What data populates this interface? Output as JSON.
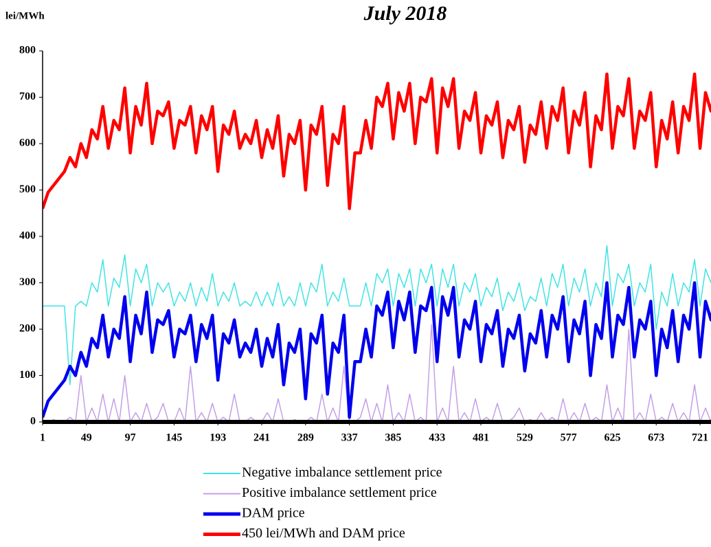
{
  "chart_data": {
    "type": "line",
    "title": "July 2018",
    "y_label": "lei/MWh",
    "x": [
      1,
      7,
      13,
      19,
      25,
      31,
      37,
      43,
      49,
      55,
      61,
      67,
      73,
      79,
      85,
      91,
      97,
      103,
      109,
      115,
      121,
      127,
      133,
      139,
      145,
      151,
      157,
      163,
      169,
      175,
      181,
      187,
      193,
      199,
      205,
      211,
      217,
      223,
      229,
      235,
      241,
      247,
      253,
      259,
      265,
      271,
      277,
      283,
      289,
      295,
      301,
      307,
      313,
      319,
      325,
      331,
      337,
      343,
      349,
      355,
      361,
      367,
      373,
      379,
      385,
      391,
      397,
      403,
      409,
      415,
      421,
      427,
      433,
      439,
      445,
      451,
      457,
      463,
      469,
      475,
      481,
      487,
      493,
      499,
      505,
      511,
      517,
      523,
      529,
      535,
      541,
      547,
      553,
      559,
      565,
      571,
      577,
      583,
      589,
      595,
      601,
      607,
      613,
      619,
      625,
      631,
      637,
      643,
      649,
      655,
      661,
      667,
      673,
      679,
      685,
      691,
      697,
      703,
      709,
      715,
      721,
      727,
      733,
      739
    ],
    "series": [
      {
        "name": "Negative imbalance settlement price",
        "color": "#3fe3e3",
        "values": [
          250,
          250,
          250,
          250,
          250,
          80,
          250,
          260,
          250,
          300,
          280,
          350,
          250,
          310,
          290,
          360,
          250,
          330,
          300,
          340,
          250,
          300,
          280,
          300,
          250,
          280,
          260,
          300,
          250,
          290,
          260,
          320,
          250,
          280,
          260,
          300,
          250,
          260,
          250,
          280,
          250,
          280,
          250,
          300,
          250,
          270,
          250,
          300,
          250,
          300,
          280,
          340,
          250,
          280,
          260,
          310,
          250,
          250,
          250,
          300,
          250,
          320,
          300,
          330,
          250,
          320,
          290,
          330,
          250,
          330,
          300,
          340,
          250,
          330,
          290,
          340,
          250,
          300,
          280,
          320,
          250,
          290,
          270,
          310,
          240,
          280,
          260,
          300,
          240,
          270,
          260,
          310,
          250,
          320,
          290,
          340,
          250,
          310,
          280,
          330,
          250,
          300,
          270,
          380,
          250,
          320,
          300,
          340,
          250,
          300,
          280,
          340,
          200,
          280,
          250,
          320,
          250,
          300,
          280,
          350,
          250,
          330,
          300,
          350
        ]
      },
      {
        "name": "Positive imbalance settlement price",
        "color": "#c49ee6",
        "values": [
          0,
          0,
          5,
          0,
          0,
          10,
          0,
          100,
          0,
          30,
          0,
          60,
          0,
          50,
          0,
          100,
          0,
          20,
          0,
          40,
          0,
          10,
          40,
          0,
          0,
          30,
          0,
          120,
          0,
          20,
          0,
          40,
          0,
          10,
          0,
          60,
          0,
          0,
          10,
          0,
          0,
          20,
          0,
          50,
          0,
          0,
          5,
          0,
          0,
          10,
          0,
          60,
          0,
          30,
          0,
          120,
          0,
          0,
          10,
          50,
          0,
          40,
          0,
          80,
          0,
          20,
          0,
          60,
          0,
          10,
          0,
          210,
          0,
          30,
          0,
          120,
          0,
          20,
          0,
          50,
          0,
          10,
          0,
          40,
          0,
          0,
          10,
          30,
          0,
          5,
          0,
          20,
          0,
          10,
          0,
          50,
          0,
          20,
          0,
          40,
          0,
          10,
          0,
          80,
          0,
          30,
          0,
          200,
          0,
          20,
          0,
          60,
          0,
          10,
          0,
          40,
          0,
          20,
          0,
          80,
          0,
          30,
          0,
          90
        ]
      },
      {
        "name": "DAM price",
        "color": "#0000ee",
        "values": [
          10,
          45,
          60,
          75,
          90,
          120,
          100,
          150,
          120,
          180,
          160,
          230,
          140,
          200,
          180,
          270,
          130,
          230,
          190,
          280,
          150,
          220,
          210,
          240,
          140,
          200,
          190,
          230,
          130,
          210,
          180,
          230,
          90,
          190,
          170,
          220,
          140,
          170,
          150,
          200,
          120,
          180,
          140,
          210,
          80,
          170,
          150,
          200,
          50,
          190,
          170,
          230,
          60,
          170,
          150,
          230,
          10,
          130,
          130,
          200,
          140,
          250,
          230,
          280,
          160,
          260,
          220,
          280,
          150,
          250,
          240,
          290,
          130,
          270,
          230,
          290,
          140,
          220,
          200,
          260,
          130,
          210,
          190,
          240,
          120,
          200,
          180,
          230,
          110,
          190,
          170,
          240,
          140,
          230,
          200,
          270,
          130,
          220,
          190,
          260,
          100,
          210,
          180,
          300,
          140,
          230,
          210,
          290,
          140,
          220,
          200,
          260,
          100,
          200,
          160,
          240,
          130,
          230,
          200,
          300,
          140,
          260,
          220,
          280
        ]
      },
      {
        "name": "450 lei/MWh and DAM price",
        "color": "#ff0000",
        "values": [
          460,
          495,
          510,
          525,
          540,
          570,
          550,
          600,
          570,
          630,
          610,
          680,
          590,
          650,
          630,
          720,
          580,
          680,
          640,
          730,
          600,
          670,
          660,
          690,
          590,
          650,
          640,
          680,
          580,
          660,
          630,
          680,
          540,
          640,
          620,
          670,
          590,
          620,
          600,
          650,
          570,
          630,
          590,
          660,
          530,
          620,
          600,
          650,
          500,
          640,
          620,
          680,
          510,
          620,
          600,
          680,
          460,
          580,
          580,
          650,
          590,
          700,
          680,
          730,
          610,
          710,
          670,
          730,
          600,
          700,
          690,
          740,
          580,
          720,
          680,
          740,
          590,
          670,
          650,
          710,
          580,
          660,
          640,
          690,
          570,
          650,
          630,
          680,
          560,
          640,
          620,
          690,
          590,
          680,
          650,
          720,
          580,
          670,
          640,
          710,
          550,
          660,
          630,
          750,
          590,
          680,
          660,
          740,
          590,
          670,
          650,
          710,
          550,
          650,
          610,
          690,
          580,
          680,
          650,
          750,
          590,
          710,
          670,
          730
        ]
      }
    ],
    "xlim": [
      1,
      733
    ],
    "xticks": [
      1,
      49,
      97,
      145,
      193,
      241,
      289,
      337,
      385,
      433,
      481,
      529,
      577,
      625,
      673,
      721
    ],
    "ylim": [
      0,
      800
    ],
    "yticks": [
      0,
      100,
      200,
      300,
      400,
      500,
      600,
      700,
      800
    ]
  }
}
